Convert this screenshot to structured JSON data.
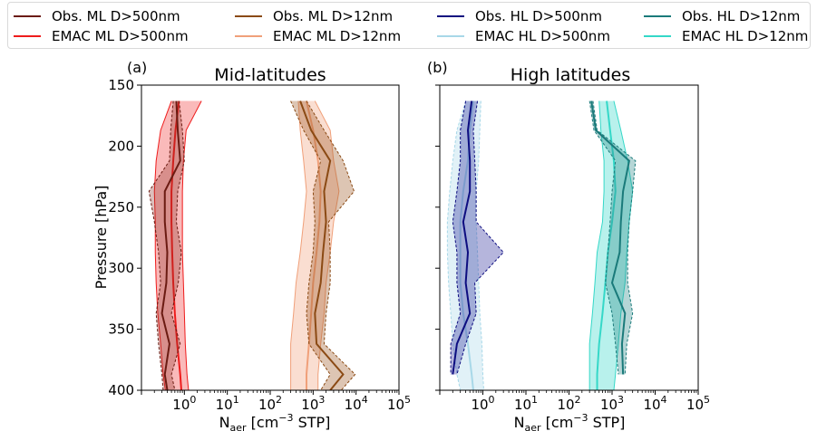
{
  "legend": [
    {
      "label": "Obs. ML D>500nm",
      "color": "#6b1b12"
    },
    {
      "label": "Obs. ML D>12nm",
      "color": "#8b4a14"
    },
    {
      "label": "Obs. HL D>500nm",
      "color": "#0d0d80"
    },
    {
      "label": "Obs. HL D>12nm",
      "color": "#1a7a7a"
    },
    {
      "label": "EMAC ML D>500nm",
      "color": "#ee1c1c"
    },
    {
      "label": "EMAC ML D>12nm",
      "color": "#f0a07a"
    },
    {
      "label": "EMAC HL D>500nm",
      "color": "#a8d8e8"
    },
    {
      "label": "EMAC HL D>12nm",
      "color": "#35d8c8"
    }
  ],
  "chart_data": [
    {
      "type": "line",
      "panel_label": "(a)",
      "title": "Mid-latitudes",
      "xlabel_main": "N",
      "xlabel_sub": "aer",
      "xlabel_unit_pre": " [cm",
      "xlabel_unit_sup": "−3",
      "xlabel_unit_post": " STP]",
      "ylabel": "Pressure [hPa]",
      "xscale": "log",
      "xlim": [
        0.1,
        100000
      ],
      "ylim": [
        400,
        150
      ],
      "xticks": [
        {
          "base": "10",
          "exp": "0"
        },
        {
          "base": "10",
          "exp": "1"
        },
        {
          "base": "10",
          "exp": "2"
        },
        {
          "base": "10",
          "exp": "3"
        },
        {
          "base": "10",
          "exp": "4"
        },
        {
          "base": "10",
          "exp": "5"
        }
      ],
      "yticks": [
        "150",
        "200",
        "250",
        "300",
        "350",
        "400"
      ],
      "series": [
        {
          "name": "EMAC ML D>500nm",
          "color": "#ee1c1c",
          "fill": "#ee1c1c",
          "fill_opacity": 0.3,
          "dash": false,
          "pressure": [
            163,
            187,
            212,
            237,
            262,
            287,
            312,
            337,
            362,
            387,
            400
          ],
          "median": [
            0.75,
            0.62,
            0.55,
            0.5,
            0.5,
            0.52,
            0.55,
            0.6,
            0.68,
            0.8,
            0.85
          ],
          "low": [
            0.5,
            0.28,
            0.22,
            0.2,
            0.21,
            0.21,
            0.22,
            0.24,
            0.28,
            0.32,
            0.36
          ],
          "high": [
            2.5,
            1.1,
            0.95,
            0.9,
            0.9,
            0.9,
            0.95,
            1.0,
            1.05,
            1.15,
            1.25
          ]
        },
        {
          "name": "Obs. ML D>500nm",
          "color": "#6b1b12",
          "fill": "#8a2c22",
          "fill_opacity": 0.3,
          "dash": true,
          "pressure": [
            163,
            187,
            212,
            237,
            262,
            287,
            312,
            337,
            362,
            387,
            400
          ],
          "median": [
            0.65,
            0.7,
            0.8,
            0.35,
            0.35,
            0.4,
            0.38,
            0.3,
            0.45,
            0.35,
            0.4
          ],
          "low": [
            0.55,
            0.48,
            0.45,
            0.15,
            0.2,
            0.25,
            0.28,
            0.22,
            0.25,
            0.3,
            0.32
          ],
          "high": [
            0.75,
            0.9,
            1.0,
            0.7,
            0.65,
            0.85,
            0.72,
            0.5,
            0.8,
            0.5,
            0.6
          ]
        },
        {
          "name": "EMAC ML D>12nm",
          "color": "#f0a07a",
          "fill": "#f0a07a",
          "fill_opacity": 0.35,
          "dash": false,
          "pressure": [
            163,
            187,
            212,
            237,
            262,
            287,
            312,
            337,
            362,
            387,
            400
          ],
          "median": [
            700,
            1000,
            1300,
            1500,
            1400,
            1200,
            1000,
            900,
            800,
            700,
            700
          ],
          "low": [
            450,
            500,
            600,
            700,
            600,
            500,
            400,
            350,
            300,
            300,
            300
          ],
          "high": [
            1100,
            2500,
            3000,
            4000,
            3000,
            2500,
            2000,
            1800,
            1500,
            1300,
            1300
          ]
        },
        {
          "name": "Obs. ML D>12nm",
          "color": "#8b4a14",
          "fill": "#9e5a24",
          "fill_opacity": 0.35,
          "dash": true,
          "pressure": [
            163,
            187,
            212,
            237,
            262,
            287,
            312,
            337,
            362,
            387,
            400
          ],
          "median": [
            500,
            900,
            2500,
            1800,
            2000,
            1700,
            1500,
            1100,
            1200,
            5000,
            2500
          ],
          "low": [
            300,
            600,
            1500,
            1000,
            1100,
            1000,
            800,
            700,
            800,
            2500,
            1500
          ],
          "high": [
            700,
            1800,
            5000,
            9000,
            2300,
            2500,
            2500,
            2000,
            1800,
            9500,
            4500
          ]
        }
      ]
    },
    {
      "type": "line",
      "panel_label": "(b)",
      "title": "High latitudes",
      "xlabel_main": "N",
      "xlabel_sub": "aer",
      "xlabel_unit_pre": " [cm",
      "xlabel_unit_sup": "−3",
      "xlabel_unit_post": " STP]",
      "ylabel": "",
      "xscale": "log",
      "xlim": [
        0.1,
        100000
      ],
      "ylim": [
        400,
        150
      ],
      "xticks": [
        {
          "base": "10",
          "exp": "0"
        },
        {
          "base": "10",
          "exp": "1"
        },
        {
          "base": "10",
          "exp": "2"
        },
        {
          "base": "10",
          "exp": "3"
        },
        {
          "base": "10",
          "exp": "4"
        },
        {
          "base": "10",
          "exp": "5"
        }
      ],
      "yticks": [],
      "series": [
        {
          "name": "EMAC HL D>500nm",
          "color": "#a8d8e8",
          "fill": "#a8d8e8",
          "fill_opacity": 0.35,
          "dash": true,
          "pressure": [
            163,
            187,
            212,
            237,
            262,
            287,
            312,
            337,
            362,
            387,
            400
          ],
          "median": [
            0.6,
            0.5,
            0.45,
            0.35,
            0.3,
            0.3,
            0.3,
            0.35,
            0.45,
            0.55,
            0.6
          ],
          "low": [
            0.4,
            0.25,
            0.2,
            0.17,
            0.15,
            0.15,
            0.16,
            0.18,
            0.2,
            0.25,
            0.3
          ],
          "high": [
            0.9,
            0.85,
            0.8,
            0.7,
            0.7,
            0.75,
            0.8,
            0.85,
            0.95,
            1.0,
            1.05
          ]
        },
        {
          "name": "Obs. HL D>500nm",
          "color": "#0d0d80",
          "fill": "#2a2a9a",
          "fill_opacity": 0.35,
          "dash": true,
          "pressure": [
            163,
            187,
            212,
            237,
            262,
            287,
            312,
            337,
            362,
            387
          ],
          "median": [
            0.55,
            0.45,
            0.5,
            0.5,
            0.35,
            0.45,
            0.4,
            0.5,
            0.25,
            0.2
          ],
          "low": [
            0.4,
            0.3,
            0.3,
            0.25,
            0.2,
            0.25,
            0.25,
            0.3,
            0.18,
            0.18
          ],
          "high": [
            0.75,
            0.6,
            0.65,
            0.7,
            0.7,
            3.0,
            0.65,
            0.7,
            0.4,
            0.25
          ]
        },
        {
          "name": "EMAC HL D>12nm",
          "color": "#35d8c8",
          "fill": "#35d8c8",
          "fill_opacity": 0.35,
          "dash": false,
          "pressure": [
            163,
            187,
            212,
            237,
            262,
            287,
            312,
            337,
            362,
            387,
            400
          ],
          "median": [
            750,
            900,
            1100,
            1200,
            1000,
            800,
            700,
            600,
            500,
            450,
            450
          ],
          "low": [
            500,
            550,
            650,
            650,
            600,
            450,
            400,
            350,
            300,
            300,
            300
          ],
          "high": [
            1100,
            1600,
            2300,
            3000,
            2500,
            2200,
            2000,
            1600,
            1400,
            1200,
            1100
          ]
        },
        {
          "name": "Obs. HL D>12nm",
          "color": "#1a7a7a",
          "fill": "#2a8a8a",
          "fill_opacity": 0.35,
          "dash": true,
          "pressure": [
            163,
            187,
            212,
            237,
            262,
            287,
            312,
            337,
            362,
            387
          ],
          "median": [
            330,
            420,
            2500,
            1800,
            1600,
            1500,
            1000,
            2000,
            1700,
            1800
          ],
          "low": [
            300,
            380,
            1200,
            1000,
            900,
            800,
            700,
            1000,
            1200,
            1400
          ],
          "high": [
            360,
            450,
            3500,
            3000,
            2500,
            2300,
            2300,
            3000,
            2200,
            2000
          ]
        }
      ]
    }
  ]
}
